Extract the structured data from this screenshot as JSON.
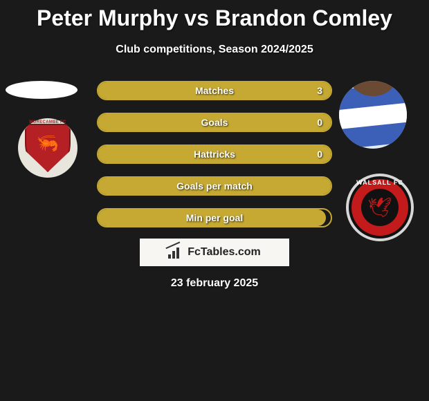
{
  "title": "Peter Murphy vs Brandon Comley",
  "subtitle": "Club competitions, Season 2024/2025",
  "colors": {
    "background": "#1a1a1a",
    "bar_border": "#c5a933",
    "bar_fill": "#c5a933",
    "text": "#ffffff"
  },
  "stats": [
    {
      "label": "Matches",
      "value_right": "3",
      "fill_pct": 100
    },
    {
      "label": "Goals",
      "value_right": "0",
      "fill_pct": 100
    },
    {
      "label": "Hattricks",
      "value_right": "0",
      "fill_pct": 100
    },
    {
      "label": "Goals per match",
      "value_right": "",
      "fill_pct": 100
    },
    {
      "label": "Min per goal",
      "value_right": "",
      "fill_pct": 98
    }
  ],
  "left_player": {
    "name": "Peter Murphy",
    "club_placeholder": "MORECAMBE FC",
    "badge_bg": "#b52025"
  },
  "right_player": {
    "name": "Brandon Comley",
    "kit_stripe_color": "#3c5fb8",
    "club_placeholder": "WALSALL FC",
    "badge_ring": "#c31b1b"
  },
  "watermark": {
    "text": "FcTables.com"
  },
  "date": "23 february 2025"
}
